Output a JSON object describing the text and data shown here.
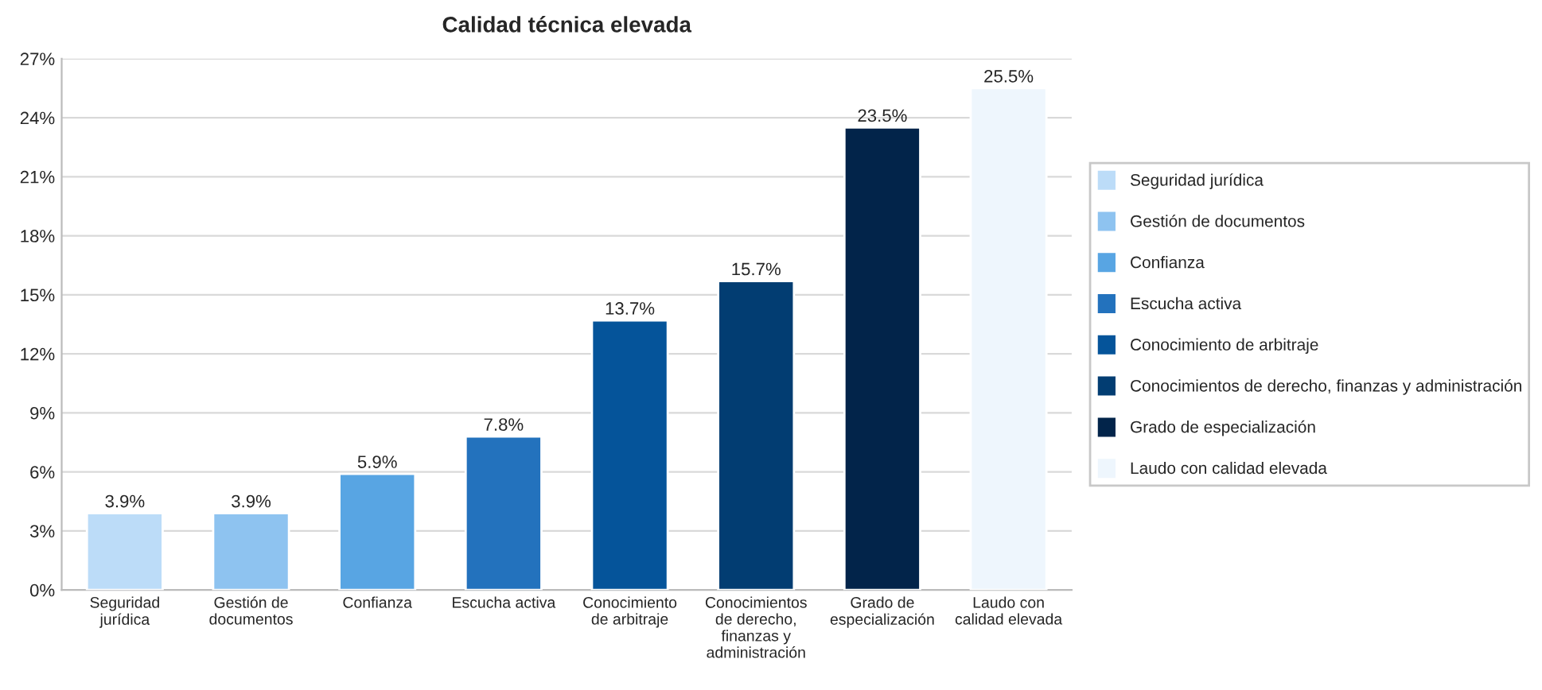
{
  "chart_data": {
    "type": "bar",
    "title": "Calidad técnica elevada",
    "categories": [
      "Seguridad\njurídica",
      "Gestión de\ndocumentos",
      "Confianza",
      "Escucha activa",
      "Conocimiento\nde arbitraje",
      "Conocimientos\nde derecho,\nfinanzas y\nadministración",
      "Grado de\nespecialización",
      "Laudo con\ncalidad elevada"
    ],
    "stacked": true,
    "series": [
      {
        "name": "Seguridad jurídica",
        "color": "#bcdcf8",
        "values": [
          3.9,
          null,
          null,
          null,
          null,
          null,
          null,
          null
        ],
        "value_labels": [
          "3.9%",
          null,
          null,
          null,
          null,
          null,
          null,
          null
        ]
      },
      {
        "name": "Gestión de documentos",
        "color": "#8ec3f0",
        "values": [
          null,
          3.9,
          null,
          null,
          null,
          null,
          null,
          null
        ],
        "value_labels": [
          null,
          "3.9%",
          null,
          null,
          null,
          null,
          null,
          null
        ]
      },
      {
        "name": "Confianza",
        "color": "#58a5e3",
        "values": [
          null,
          null,
          5.9,
          null,
          null,
          null,
          null,
          null
        ],
        "value_labels": [
          null,
          null,
          "5.9%",
          null,
          null,
          null,
          null,
          null
        ]
      },
      {
        "name": "Escucha activa",
        "color": "#2372bd",
        "values": [
          null,
          null,
          null,
          7.8,
          null,
          null,
          null,
          null
        ],
        "value_labels": [
          null,
          null,
          null,
          "7.8%",
          null,
          null,
          null,
          null
        ]
      },
      {
        "name": "Conocimiento de arbitraje",
        "color": "#05549a",
        "values": [
          null,
          null,
          null,
          null,
          13.7,
          null,
          null,
          null
        ],
        "value_labels": [
          null,
          null,
          null,
          null,
          "13.7%",
          null,
          null,
          null
        ]
      },
      {
        "name": "Conocimientos de derecho, finanzas y administración",
        "color": "#023d72",
        "values": [
          null,
          null,
          null,
          null,
          null,
          15.7,
          null,
          null
        ],
        "value_labels": [
          null,
          null,
          null,
          null,
          null,
          "15.7%",
          null,
          null
        ]
      },
      {
        "name": "Grado de especialización",
        "color": "#02244a",
        "values": [
          null,
          null,
          null,
          null,
          null,
          null,
          23.5,
          null
        ],
        "value_labels": [
          null,
          null,
          null,
          null,
          null,
          null,
          "23.5%",
          null
        ]
      },
      {
        "name": "Laudo con calidad elevada",
        "color": "#eef6fd",
        "values": [
          null,
          null,
          null,
          null,
          null,
          null,
          null,
          25.5
        ],
        "value_labels": [
          null,
          null,
          null,
          null,
          null,
          null,
          null,
          "25.5%"
        ]
      }
    ],
    "ylim": [
      0,
      27
    ],
    "yticks": [
      {
        "value": 0,
        "label": "0%"
      },
      {
        "value": 3,
        "label": "3%"
      },
      {
        "value": 6,
        "label": "6%"
      },
      {
        "value": 9,
        "label": "9%"
      },
      {
        "value": 12,
        "label": "12%"
      },
      {
        "value": 15,
        "label": "15%"
      },
      {
        "value": 18,
        "label": "18%"
      },
      {
        "value": 21,
        "label": "21%"
      },
      {
        "value": 24,
        "label": "24%"
      },
      {
        "value": 27,
        "label": "27%"
      }
    ],
    "grid": "y",
    "legend": "right"
  }
}
